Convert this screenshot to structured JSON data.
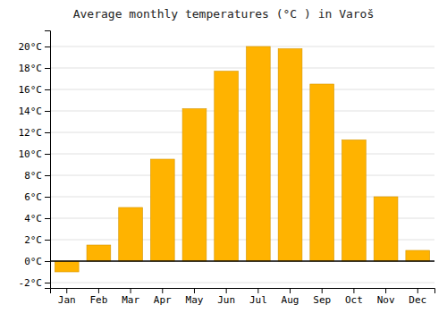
{
  "chart_data": {
    "type": "bar",
    "title": "Average monthly temperatures (°C ) in Varoš",
    "categories": [
      "Jan",
      "Feb",
      "Mar",
      "Apr",
      "May",
      "Jun",
      "Jul",
      "Aug",
      "Sep",
      "Oct",
      "Nov",
      "Dec"
    ],
    "values": [
      -1.0,
      1.5,
      5.0,
      9.5,
      14.2,
      17.7,
      20.0,
      19.8,
      16.5,
      11.3,
      6.0,
      1.0
    ],
    "color": "#FFB300",
    "ylim": [
      -2.5,
      21.5
    ],
    "yticks": [
      {
        "value": -2,
        "label": "-2°C"
      },
      {
        "value": 0,
        "label": "0°C"
      },
      {
        "value": 2,
        "label": "2°C"
      },
      {
        "value": 4,
        "label": "4°C"
      },
      {
        "value": 6,
        "label": "6°C"
      },
      {
        "value": 8,
        "label": "8°C"
      },
      {
        "value": 10,
        "label": "10°C"
      },
      {
        "value": 12,
        "label": "12°C"
      },
      {
        "value": 14,
        "label": "14°C"
      },
      {
        "value": 16,
        "label": "16°C"
      },
      {
        "value": 18,
        "label": "18°C"
      },
      {
        "value": 20,
        "label": "20°C"
      }
    ],
    "grid": true
  }
}
